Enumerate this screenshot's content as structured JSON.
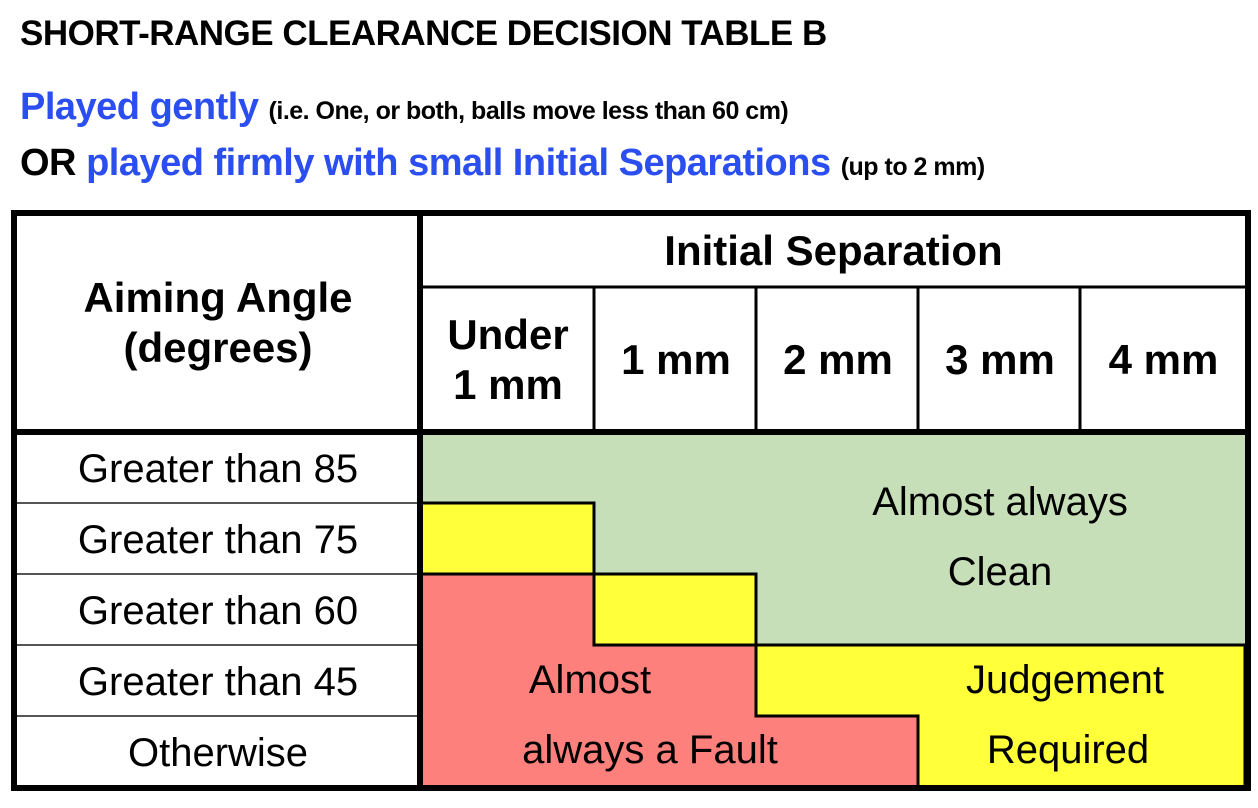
{
  "title": "SHORT-RANGE CLEARANCE DECISION TABLE B",
  "subtitle1": {
    "highlight": "Played gently",
    "note": "(i.e. One, or both, balls move less than 60 cm)"
  },
  "subtitle2": {
    "prefix": "OR",
    "highlight": "played firmly with small Initial Separations",
    "note": "(up to 2 mm)"
  },
  "table": {
    "row_header": [
      "Aiming Angle",
      "(degrees)"
    ],
    "column_group_header": "Initial Separation",
    "columns": [
      [
        "Under",
        "1 mm"
      ],
      [
        "1 mm"
      ],
      [
        "2 mm"
      ],
      [
        "3 mm"
      ],
      [
        "4 mm"
      ]
    ],
    "rows": [
      "Greater than 85",
      "Greater than 75",
      "Greater than 60",
      "Greater than 45",
      "Otherwise"
    ],
    "regions": {
      "clean": [
        "Almost always",
        "Clean"
      ],
      "fault": [
        "Almost",
        "always a Fault"
      ],
      "judgement": [
        "Judgement",
        "Required"
      ]
    },
    "cell_outcomes": [
      [
        "clean",
        "clean",
        "clean",
        "clean",
        "clean"
      ],
      [
        "judgement",
        "clean",
        "clean",
        "clean",
        "clean"
      ],
      [
        "fault",
        "judgement",
        "clean",
        "clean",
        "clean"
      ],
      [
        "fault",
        "fault",
        "judgement",
        "judgement",
        "judgement"
      ],
      [
        "fault",
        "fault",
        "fault",
        "judgement",
        "judgement"
      ]
    ]
  },
  "colors": {
    "blue": "#2b4ef0",
    "clean": "#c6dfb8",
    "judgement": "#ffff3a",
    "fault": "#fd807c"
  }
}
